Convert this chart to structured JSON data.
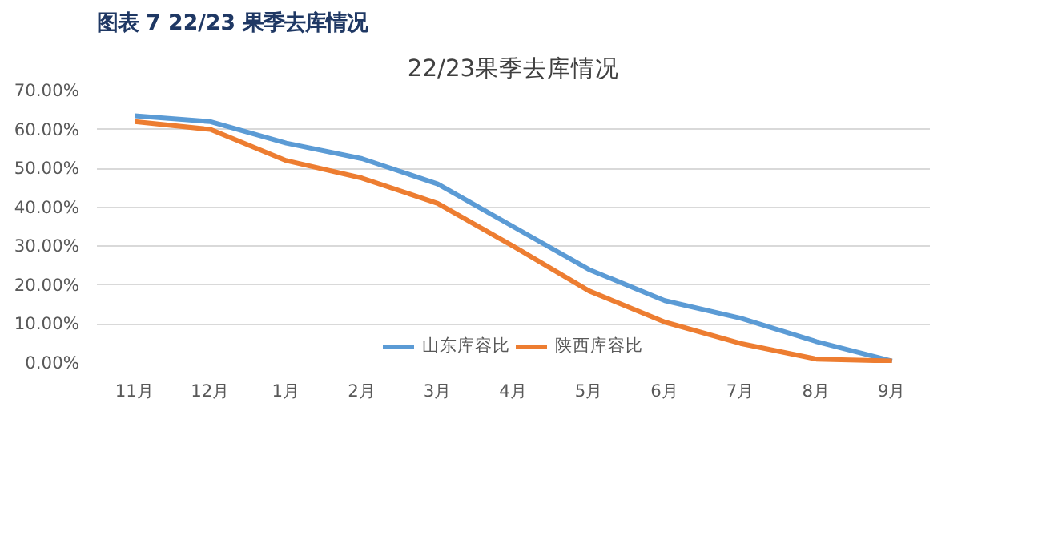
{
  "chart_data": {
    "type": "line",
    "title": "图表 7 22/23 果季去库情况",
    "subtitle": "22/23果季去库情况",
    "categories": [
      "11月",
      "12月",
      "1月",
      "2月",
      "3月",
      "4月",
      "5月",
      "6月",
      "7月",
      "8月",
      "9月"
    ],
    "series": [
      {
        "name": "山东库容比",
        "color": "#5b9bd5",
        "values": [
          63.5,
          62,
          56.5,
          52.5,
          46,
          35,
          24,
          16,
          11.5,
          5.5,
          0.5
        ]
      },
      {
        "name": "陕西库容比",
        "color": "#ed7d31",
        "values": [
          62,
          60,
          52,
          47.5,
          41,
          30,
          18.5,
          10.5,
          5,
          1,
          0.5
        ]
      }
    ],
    "ylim": [
      0,
      70
    ],
    "yticks": [
      {
        "value": 0,
        "label": "0.00%"
      },
      {
        "value": 10,
        "label": "10.00%"
      },
      {
        "value": 20,
        "label": "20.00%"
      },
      {
        "value": 30,
        "label": "30.00%"
      },
      {
        "value": 40,
        "label": "40.00%"
      },
      {
        "value": 50,
        "label": "50.00%"
      },
      {
        "value": 60,
        "label": "60.00%"
      },
      {
        "value": 70,
        "label": "70.00%"
      }
    ],
    "grid": "y",
    "legend": "bottom",
    "marker": "none",
    "line_style": "solid"
  }
}
